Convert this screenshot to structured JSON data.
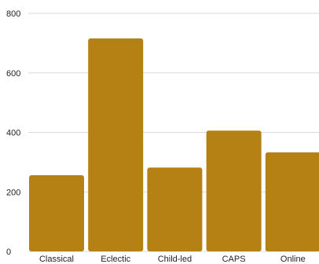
{
  "chart_data": {
    "type": "bar",
    "categories": [
      "Classical",
      "Eclectic",
      "Child-led",
      "CAPS",
      "Online"
    ],
    "values": [
      256,
      716,
      282,
      406,
      333
    ],
    "ylim": [
      0,
      800
    ],
    "yticks": [
      0,
      200,
      400,
      600,
      800
    ],
    "grid": true,
    "legend": "none",
    "colors": {
      "bar": "#b58114",
      "grid": "#d9d9d9",
      "text": "#222222"
    }
  }
}
